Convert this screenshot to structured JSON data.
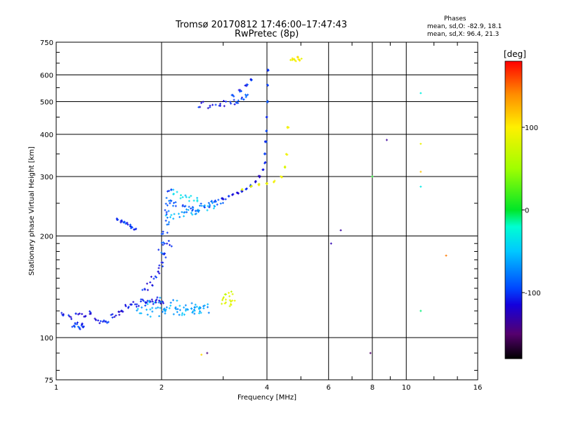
{
  "title": {
    "line1": "Tromsø 20170812 17:46:00–17:47:43",
    "line2": "RwPretec (8p)"
  },
  "phases": {
    "heading": "Phases",
    "o_label": "mean, sd,O: ",
    "o_values": "-82.9, 18.1",
    "x_label": "mean, sd,X: ",
    "x_values": "96.4, 21.3"
  },
  "colorbar": {
    "unit": "[deg]",
    "range": [
      -180,
      180
    ],
    "ticks": [
      "100",
      "0",
      "-100"
    ],
    "tick_values": [
      100,
      0,
      -100
    ]
  },
  "chart_data": {
    "type": "scatter",
    "title": "Tromsø 20170812 17:46:00–17:47:43",
    "subtitle": "RwPretec (8p)",
    "xlabel": "Frequency [MHz]",
    "ylabel": "Stationary phase Virtual Height [km]",
    "xscale": "log",
    "yscale": "log",
    "xlim": [
      1,
      16
    ],
    "ylim": [
      75,
      750
    ],
    "xticks": [
      1,
      2,
      4,
      6,
      8,
      10,
      16
    ],
    "xtick_labels": [
      "1",
      "2",
      "4",
      "6",
      "8",
      "10",
      "16"
    ],
    "yticks": [
      75,
      100,
      200,
      300,
      400,
      500,
      600,
      750
    ],
    "ytick_labels": [
      "75",
      "100",
      "200",
      "300",
      "400",
      "500",
      "600",
      "750"
    ],
    "grid": true,
    "color_scale": "phase [deg], rainbow from black (-180) through blue (-100), cyan, green (0), yellow (100) to red (180)",
    "series": [
      {
        "traces": [
          {
            "x": [
              1.05,
              1.1,
              1.15,
              1.2,
              1.25,
              1.3,
              1.35,
              1.4,
              1.45,
              1.5,
              1.55,
              1.6,
              1.65,
              1.7,
              1.75,
              1.8,
              1.85,
              1.9,
              1.95,
              2.0
            ],
            "y": [
              117,
              115,
              118,
              116,
              119,
              113,
              111,
              112,
              116,
              118,
              121,
              124,
              127,
              124,
              128,
              126,
              129,
              127,
              130,
              128
            ],
            "phase": -110,
            "spread": 0.015
          },
          {
            "x": [
              1.75,
              1.8,
              1.85,
              1.9,
              1.95,
              2.0,
              2.05,
              2.1,
              2.15,
              2.2,
              2.25,
              2.3,
              2.35,
              2.4,
              2.45,
              2.5,
              2.55,
              2.6,
              2.65,
              2.7
            ],
            "y": [
              120,
              125,
              118,
              122,
              128,
              119,
              123,
              121,
              126,
              120,
              124,
              118,
              122,
              125,
              119,
              121,
              123,
              120,
              122,
              124
            ],
            "phase": -60,
            "spread": 0.03
          },
          {
            "x": [
              1.12,
              1.14,
              1.16,
              1.18,
              1.2
            ],
            "y": [
              108,
              110,
              107,
              109,
              108
            ],
            "phase": -100,
            "spread": 0.01
          },
          {
            "x": [
              1.5,
              1.53,
              1.56,
              1.59,
              1.62,
              1.65,
              1.68
            ],
            "y": [
              225,
              221,
              219,
              217,
              215,
              212,
              210
            ],
            "phase": -100,
            "spread": 0.008
          },
          {
            "x": [
              1.8,
              1.85,
              1.9,
              1.95,
              2.0,
              2.05,
              2.1
            ],
            "y": [
              140,
              145,
              150,
              158,
              165,
              175,
              190
            ],
            "phase": -110,
            "spread": 0.02
          },
          {
            "x": [
              2.0,
              2.02,
              2.04,
              2.06,
              2.08,
              2.1,
              2.12
            ],
            "y": [
              180,
              190,
              205,
              220,
              235,
              250,
              270
            ],
            "phase": -90,
            "spread": 0.02
          },
          {
            "x": [
              2.1,
              2.2,
              2.3,
              2.4,
              2.5,
              2.6,
              2.7,
              2.8,
              2.9,
              3.0
            ],
            "y": [
              255,
              248,
              242,
              240,
              242,
              245,
              248,
              250,
              252,
              254
            ],
            "phase": -90,
            "spread": 0.02
          },
          {
            "x": [
              2.1,
              2.2,
              2.3,
              2.4,
              2.5,
              2.6,
              2.7,
              2.8
            ],
            "y": [
              230,
              228,
              232,
              235,
              238,
              240,
              242,
              245
            ],
            "phase": -60,
            "spread": 0.025
          },
          {
            "x": [
              2.2,
              2.3,
              2.4,
              2.5
            ],
            "y": [
              270,
              262,
              258,
              255
            ],
            "phase": -40,
            "spread": 0.02
          },
          {
            "x": [
              3.0,
              3.1,
              3.2,
              3.3,
              3.4,
              3.5,
              3.6,
              3.7,
              3.8,
              3.9,
              3.95
            ],
            "y": [
              258,
              262,
              265,
              268,
              272,
              276,
              282,
              290,
              300,
              315,
              330
            ],
            "phase": -110,
            "spread": 0.005
          },
          {
            "x": [
              3.95,
              3.97,
              3.99,
              4.0,
              4.01,
              4.02,
              4.03
            ],
            "y": [
              350,
              380,
              410,
              450,
              500,
              560,
              620
            ],
            "phase": -100,
            "spread": 0.004
          },
          {
            "x": [
              3.4,
              3.6,
              3.8,
              4.0,
              4.2,
              4.4,
              4.5,
              4.55,
              4.6
            ],
            "y": [
              275,
              280,
              284,
              286,
              290,
              300,
              320,
              350,
              420
            ],
            "phase": 90,
            "spread": 0.005
          },
          {
            "x": [
              2.6,
              2.75,
              2.9,
              3.05,
              3.2
            ],
            "y": [
              490,
              480,
              485,
              495,
              500
            ],
            "phase": -110,
            "spread": 0.02
          },
          {
            "x": [
              3.2,
              3.35,
              3.5,
              3.6
            ],
            "y": [
              520,
              540,
              560,
              580
            ],
            "phase": -100,
            "spread": 0.01
          },
          {
            "x": [
              3.3,
              3.4,
              3.5
            ],
            "y": [
              500,
              510,
              520
            ],
            "phase": -95,
            "spread": 0.01
          },
          {
            "x": [
              3.0,
              3.05,
              3.1,
              3.15,
              3.2
            ],
            "y": [
              128,
              132,
              125,
              135,
              130
            ],
            "phase": 80,
            "spread": 0.02
          },
          {
            "x": [
              4.7,
              4.8,
              4.9,
              5.0
            ],
            "y": [
              670,
              665,
              672,
              668
            ],
            "phase": 95,
            "spread": 0.01
          },
          {
            "x": [
              11.0
            ],
            "y": [
              530
            ],
            "phase": -20,
            "spread": 0
          },
          {
            "x": [
              11.0
            ],
            "y": [
              375
            ],
            "phase": 100,
            "spread": 0
          },
          {
            "x": [
              11.0
            ],
            "y": [
              310
            ],
            "phase": 120,
            "spread": 0
          },
          {
            "x": [
              11.0
            ],
            "y": [
              280
            ],
            "phase": -30,
            "spread": 0
          },
          {
            "x": [
              13.0
            ],
            "y": [
              175
            ],
            "phase": 140,
            "spread": 0
          },
          {
            "x": [
              11.0
            ],
            "y": [
              120
            ],
            "phase": -10,
            "spread": 0
          },
          {
            "x": [
              8.0
            ],
            "y": [
              300
            ],
            "phase": 10,
            "spread": 0
          },
          {
            "x": [
              6.5
            ],
            "y": [
              208
            ],
            "phase": -140,
            "spread": 0
          },
          {
            "x": [
              6.1
            ],
            "y": [
              190
            ],
            "phase": -140,
            "spread": 0
          },
          {
            "x": [
              8.8
            ],
            "y": [
              385
            ],
            "phase": -130,
            "spread": 0
          },
          {
            "x": [
              7.9
            ],
            "y": [
              90
            ],
            "phase": -150,
            "spread": 0
          },
          {
            "x": [
              2.7
            ],
            "y": [
              90
            ],
            "phase": -150,
            "spread": 0
          },
          {
            "x": [
              2.6
            ],
            "y": [
              89
            ],
            "phase": 110,
            "spread": 0
          }
        ]
      }
    ]
  }
}
